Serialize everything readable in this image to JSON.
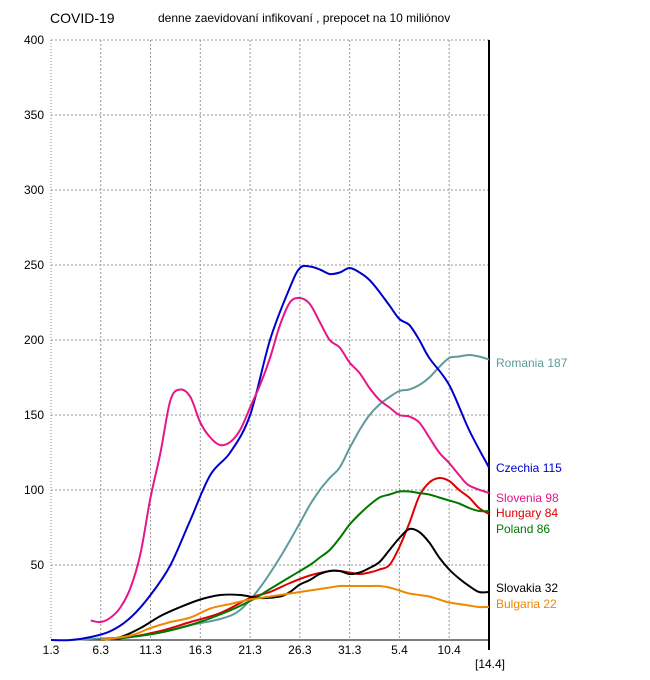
{
  "chart_data": {
    "type": "line",
    "title": "COVID-19",
    "subtitle": "denne zaevidovaní infikovaní , prepocet na 10 miliónov",
    "xlabel": "",
    "ylabel": "",
    "x_range_days": [
      0,
      44
    ],
    "x_ticks": [
      {
        "label": "1.3",
        "day": 0
      },
      {
        "label": "6.3",
        "day": 5
      },
      {
        "label": "11.3",
        "day": 10
      },
      {
        "label": "16.3",
        "day": 15
      },
      {
        "label": "21.3",
        "day": 20
      },
      {
        "label": "26.3",
        "day": 25
      },
      {
        "label": "31.3",
        "day": 30
      },
      {
        "label": "5.4",
        "day": 35
      },
      {
        "label": "10.4",
        "day": 40
      }
    ],
    "end_label": "[14.4]",
    "ylim": [
      0,
      400
    ],
    "y_ticks": [
      50,
      100,
      150,
      200,
      250,
      300,
      350,
      400
    ],
    "grid": true,
    "series": [
      {
        "name": "Romania",
        "end_value_label": "187",
        "color": "#5f9a9a",
        "points": [
          [
            2,
            0
          ],
          [
            5,
            1
          ],
          [
            8,
            2
          ],
          [
            11,
            5
          ],
          [
            14,
            10
          ],
          [
            17,
            14
          ],
          [
            19,
            20
          ],
          [
            21,
            35
          ],
          [
            23,
            55
          ],
          [
            25,
            78
          ],
          [
            26,
            90
          ],
          [
            27,
            100
          ],
          [
            28,
            108
          ],
          [
            29,
            115
          ],
          [
            30,
            128
          ],
          [
            31,
            140
          ],
          [
            32,
            150
          ],
          [
            33,
            157
          ],
          [
            34,
            162
          ],
          [
            35,
            166
          ],
          [
            36,
            167
          ],
          [
            37,
            170
          ],
          [
            38,
            175
          ],
          [
            39,
            182
          ],
          [
            40,
            188
          ],
          [
            41,
            189
          ],
          [
            42,
            190
          ],
          [
            43,
            189
          ],
          [
            44,
            187
          ]
        ]
      },
      {
        "name": "Czechia",
        "end_value_label": "115",
        "color": "#0000cc",
        "points": [
          [
            0,
            0
          ],
          [
            2,
            0
          ],
          [
            4,
            2
          ],
          [
            6,
            6
          ],
          [
            8,
            15
          ],
          [
            10,
            30
          ],
          [
            12,
            50
          ],
          [
            14,
            80
          ],
          [
            16,
            110
          ],
          [
            18,
            125
          ],
          [
            20,
            150
          ],
          [
            22,
            200
          ],
          [
            24,
            235
          ],
          [
            25,
            248
          ],
          [
            26,
            249
          ],
          [
            27,
            247
          ],
          [
            28,
            244
          ],
          [
            29,
            245
          ],
          [
            30,
            248
          ],
          [
            31,
            245
          ],
          [
            32,
            240
          ],
          [
            33,
            232
          ],
          [
            34,
            223
          ],
          [
            35,
            214
          ],
          [
            36,
            210
          ],
          [
            37,
            200
          ],
          [
            38,
            188
          ],
          [
            40,
            170
          ],
          [
            42,
            140
          ],
          [
            44,
            115
          ]
        ]
      },
      {
        "name": "Slovenia",
        "end_value_label": "98",
        "color": "#e6158a",
        "points": [
          [
            4,
            13
          ],
          [
            5,
            12
          ],
          [
            6,
            15
          ],
          [
            7,
            22
          ],
          [
            8,
            35
          ],
          [
            9,
            58
          ],
          [
            10,
            95
          ],
          [
            11,
            125
          ],
          [
            12,
            160
          ],
          [
            13,
            167
          ],
          [
            14,
            162
          ],
          [
            15,
            145
          ],
          [
            16,
            135
          ],
          [
            17,
            130
          ],
          [
            18,
            132
          ],
          [
            19,
            140
          ],
          [
            20,
            155
          ],
          [
            21,
            170
          ],
          [
            22,
            188
          ],
          [
            23,
            210
          ],
          [
            24,
            225
          ],
          [
            25,
            228
          ],
          [
            26,
            224
          ],
          [
            27,
            212
          ],
          [
            28,
            200
          ],
          [
            29,
            195
          ],
          [
            30,
            185
          ],
          [
            31,
            178
          ],
          [
            32,
            168
          ],
          [
            33,
            160
          ],
          [
            34,
            155
          ],
          [
            35,
            150
          ],
          [
            36,
            149
          ],
          [
            37,
            145
          ],
          [
            38,
            135
          ],
          [
            39,
            125
          ],
          [
            40,
            118
          ],
          [
            41,
            110
          ],
          [
            42,
            103
          ],
          [
            44,
            98
          ]
        ]
      },
      {
        "name": "Hungary",
        "end_value_label": "84",
        "color": "#dd0000",
        "points": [
          [
            5,
            0
          ],
          [
            8,
            2
          ],
          [
            11,
            6
          ],
          [
            14,
            12
          ],
          [
            17,
            18
          ],
          [
            20,
            28
          ],
          [
            22,
            32
          ],
          [
            24,
            38
          ],
          [
            26,
            43
          ],
          [
            28,
            46
          ],
          [
            29,
            46
          ],
          [
            30,
            45
          ],
          [
            31,
            44
          ],
          [
            32,
            45
          ],
          [
            33,
            47
          ],
          [
            34,
            50
          ],
          [
            35,
            62
          ],
          [
            36,
            78
          ],
          [
            37,
            96
          ],
          [
            38,
            105
          ],
          [
            39,
            108
          ],
          [
            40,
            106
          ],
          [
            41,
            100
          ],
          [
            42,
            95
          ],
          [
            43,
            88
          ],
          [
            44,
            84
          ]
        ]
      },
      {
        "name": "Poland",
        "end_value_label": "86",
        "color": "#007700",
        "points": [
          [
            5,
            0
          ],
          [
            8,
            2
          ],
          [
            11,
            5
          ],
          [
            14,
            10
          ],
          [
            17,
            17
          ],
          [
            20,
            26
          ],
          [
            22,
            34
          ],
          [
            24,
            42
          ],
          [
            26,
            50
          ],
          [
            27,
            55
          ],
          [
            28,
            60
          ],
          [
            29,
            68
          ],
          [
            30,
            77
          ],
          [
            31,
            84
          ],
          [
            32,
            90
          ],
          [
            33,
            95
          ],
          [
            34,
            97
          ],
          [
            35,
            99
          ],
          [
            36,
            99
          ],
          [
            37,
            98
          ],
          [
            38,
            97
          ],
          [
            39,
            95
          ],
          [
            40,
            93
          ],
          [
            41,
            91
          ],
          [
            42,
            88
          ],
          [
            43,
            86
          ],
          [
            44,
            86
          ]
        ]
      },
      {
        "name": "Slovakia",
        "end_value_label": "32",
        "color": "#000000",
        "points": [
          [
            5,
            0
          ],
          [
            7,
            2
          ],
          [
            9,
            8
          ],
          [
            11,
            16
          ],
          [
            13,
            22
          ],
          [
            15,
            27
          ],
          [
            17,
            30
          ],
          [
            19,
            30
          ],
          [
            21,
            28
          ],
          [
            23,
            29
          ],
          [
            24,
            32
          ],
          [
            25,
            37
          ],
          [
            26,
            40
          ],
          [
            27,
            44
          ],
          [
            28,
            46
          ],
          [
            29,
            46
          ],
          [
            30,
            44
          ],
          [
            31,
            45
          ],
          [
            32,
            48
          ],
          [
            33,
            52
          ],
          [
            34,
            60
          ],
          [
            35,
            68
          ],
          [
            36,
            74
          ],
          [
            37,
            72
          ],
          [
            38,
            65
          ],
          [
            39,
            55
          ],
          [
            40,
            47
          ],
          [
            41,
            41
          ],
          [
            42,
            36
          ],
          [
            43,
            32
          ],
          [
            44,
            32
          ]
        ]
      },
      {
        "name": "Bulgaria",
        "end_value_label": "22",
        "color": "#ee8800",
        "points": [
          [
            5,
            0
          ],
          [
            8,
            3
          ],
          [
            10,
            8
          ],
          [
            12,
            12
          ],
          [
            14,
            15
          ],
          [
            16,
            21
          ],
          [
            18,
            24
          ],
          [
            20,
            27
          ],
          [
            22,
            29
          ],
          [
            24,
            31
          ],
          [
            26,
            33
          ],
          [
            28,
            35
          ],
          [
            29,
            36
          ],
          [
            30,
            36
          ],
          [
            31,
            36
          ],
          [
            32,
            36
          ],
          [
            33,
            36
          ],
          [
            34,
            35
          ],
          [
            35,
            33
          ],
          [
            36,
            31
          ],
          [
            37,
            30
          ],
          [
            38,
            29
          ],
          [
            39,
            27
          ],
          [
            40,
            25
          ],
          [
            41,
            24
          ],
          [
            42,
            23
          ],
          [
            43,
            22
          ],
          [
            44,
            22
          ]
        ]
      }
    ]
  }
}
